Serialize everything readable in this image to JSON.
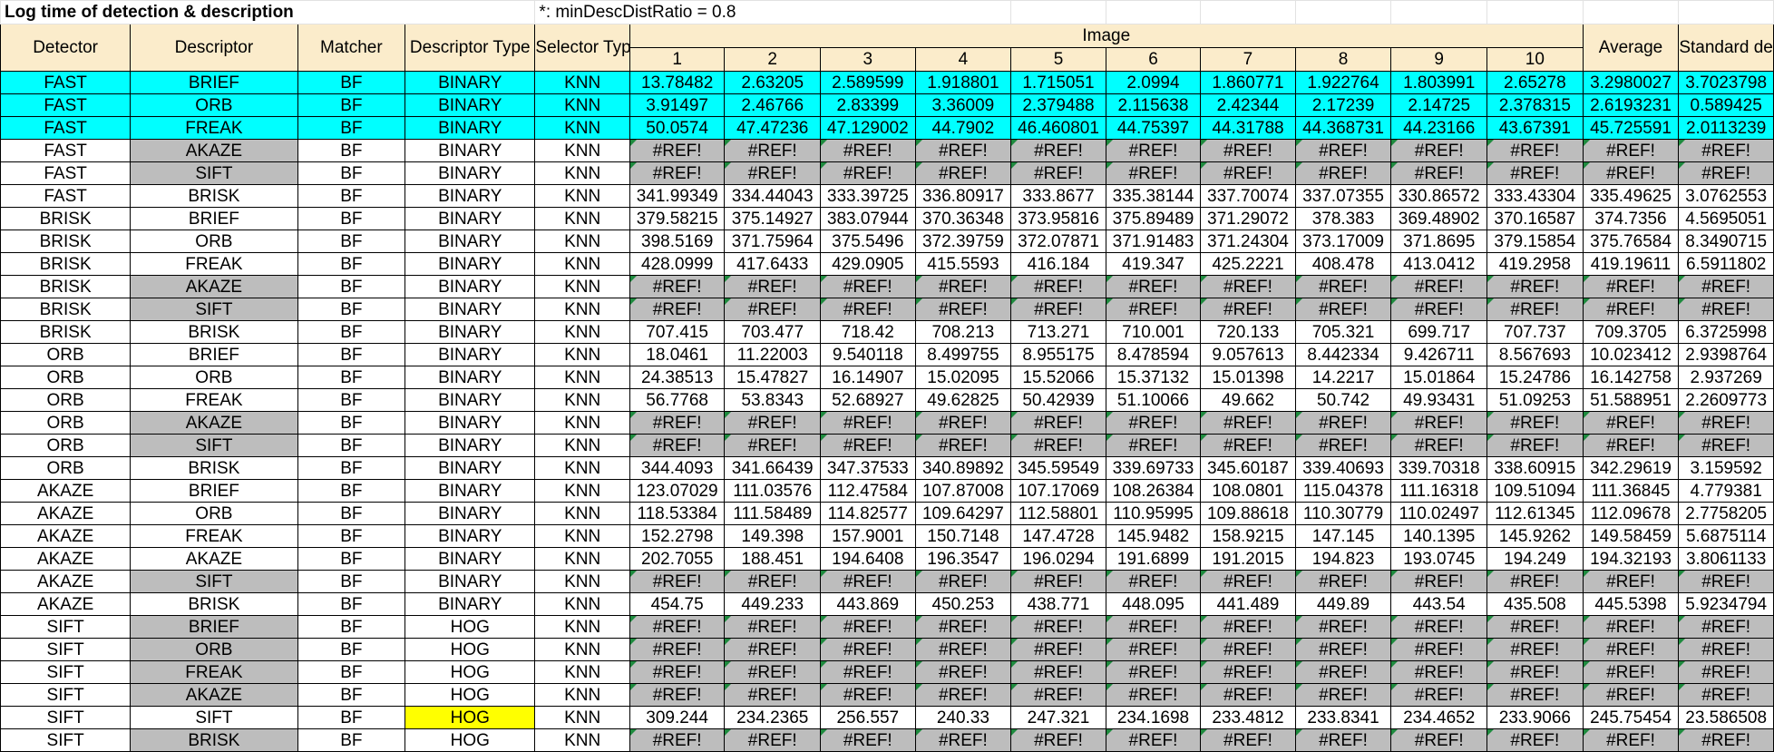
{
  "sheet": {
    "title": "Log time of detection & description",
    "note": "*: minDescDistRatio = 0.8",
    "headers": {
      "detector": "Detector",
      "descriptor": "Descriptor",
      "matcher": "Matcher",
      "descriptor_type": "Descriptor Type",
      "selector_type": "Selector Type *",
      "image": "Image",
      "image_numbers": [
        "1",
        "2",
        "3",
        "4",
        "5",
        "6",
        "7",
        "8",
        "9",
        "10"
      ],
      "average": "Average",
      "std": "Standard deviation"
    },
    "colors": {
      "header_fill": "#fbeccb",
      "highlight_cyan": "#00ffff",
      "error_gray": "#bdbdbd",
      "highlight_yellow": "#ffff00",
      "comment_marker": "#1e8a3e"
    },
    "rows": [
      {
        "detector": "FAST",
        "descriptor": "BRIEF",
        "matcher": "BF",
        "dtype": "BINARY",
        "selector": "KNN",
        "values": [
          "13.78482",
          "2.63205",
          "2.589599",
          "1.918801",
          "1.715051",
          "2.0994",
          "1.860771",
          "1.922764",
          "1.803991",
          "2.65278"
        ],
        "average": "3.2980027",
        "std": "3.7023798",
        "highlight": "cyan"
      },
      {
        "detector": "FAST",
        "descriptor": "ORB",
        "matcher": "BF",
        "dtype": "BINARY",
        "selector": "KNN",
        "values": [
          "3.91497",
          "2.46766",
          "2.83399",
          "3.36009",
          "2.379488",
          "2.115638",
          "2.42344",
          "2.17239",
          "2.14725",
          "2.378315"
        ],
        "average": "2.6193231",
        "std": "0.589425",
        "highlight": "cyan"
      },
      {
        "detector": "FAST",
        "descriptor": "FREAK",
        "matcher": "BF",
        "dtype": "BINARY",
        "selector": "KNN",
        "values": [
          "50.0574",
          "47.47236",
          "47.129002",
          "44.7902",
          "46.460801",
          "44.75397",
          "44.31788",
          "44.368731",
          "44.23166",
          "43.67391"
        ],
        "average": "45.725591",
        "std": "2.0113239",
        "highlight": "cyan"
      },
      {
        "detector": "FAST",
        "descriptor": "AKAZE",
        "matcher": "BF",
        "dtype": "BINARY",
        "selector": "KNN",
        "values": [
          "#REF!",
          "#REF!",
          "#REF!",
          "#REF!",
          "#REF!",
          "#REF!",
          "#REF!",
          "#REF!",
          "#REF!",
          "#REF!"
        ],
        "average": "#REF!",
        "std": "#REF!",
        "error": true
      },
      {
        "detector": "FAST",
        "descriptor": "SIFT",
        "matcher": "BF",
        "dtype": "BINARY",
        "selector": "KNN",
        "values": [
          "#REF!",
          "#REF!",
          "#REF!",
          "#REF!",
          "#REF!",
          "#REF!",
          "#REF!",
          "#REF!",
          "#REF!",
          "#REF!"
        ],
        "average": "#REF!",
        "std": "#REF!",
        "error": true
      },
      {
        "detector": "FAST",
        "descriptor": "BRISK",
        "matcher": "BF",
        "dtype": "BINARY",
        "selector": "KNN",
        "values": [
          "341.99349",
          "334.44043",
          "333.39725",
          "336.80917",
          "333.8677",
          "335.38144",
          "337.70074",
          "337.07355",
          "330.86572",
          "333.43304"
        ],
        "average": "335.49625",
        "std": "3.0762553"
      },
      {
        "detector": "BRISK",
        "descriptor": "BRIEF",
        "matcher": "BF",
        "dtype": "BINARY",
        "selector": "KNN",
        "values": [
          "379.58215",
          "375.14927",
          "383.07944",
          "370.36348",
          "373.95816",
          "375.89489",
          "371.29072",
          "378.383",
          "369.48902",
          "370.16587"
        ],
        "average": "374.7356",
        "std": "4.5695051"
      },
      {
        "detector": "BRISK",
        "descriptor": "ORB",
        "matcher": "BF",
        "dtype": "BINARY",
        "selector": "KNN",
        "values": [
          "398.5169",
          "371.75964",
          "375.5496",
          "372.39759",
          "372.07871",
          "371.91483",
          "371.24304",
          "373.17009",
          "371.8695",
          "379.15854"
        ],
        "average": "375.76584",
        "std": "8.3490715"
      },
      {
        "detector": "BRISK",
        "descriptor": "FREAK",
        "matcher": "BF",
        "dtype": "BINARY",
        "selector": "KNN",
        "values": [
          "428.0999",
          "417.6433",
          "429.0905",
          "415.5593",
          "416.184",
          "419.347",
          "425.2221",
          "408.478",
          "413.0412",
          "419.2958"
        ],
        "average": "419.19611",
        "std": "6.5911802"
      },
      {
        "detector": "BRISK",
        "descriptor": "AKAZE",
        "matcher": "BF",
        "dtype": "BINARY",
        "selector": "KNN",
        "values": [
          "#REF!",
          "#REF!",
          "#REF!",
          "#REF!",
          "#REF!",
          "#REF!",
          "#REF!",
          "#REF!",
          "#REF!",
          "#REF!"
        ],
        "average": "#REF!",
        "std": "#REF!",
        "error": true
      },
      {
        "detector": "BRISK",
        "descriptor": "SIFT",
        "matcher": "BF",
        "dtype": "BINARY",
        "selector": "KNN",
        "values": [
          "#REF!",
          "#REF!",
          "#REF!",
          "#REF!",
          "#REF!",
          "#REF!",
          "#REF!",
          "#REF!",
          "#REF!",
          "#REF!"
        ],
        "average": "#REF!",
        "std": "#REF!",
        "error": true
      },
      {
        "detector": "BRISK",
        "descriptor": "BRISK",
        "matcher": "BF",
        "dtype": "BINARY",
        "selector": "KNN",
        "values": [
          "707.415",
          "703.477",
          "718.42",
          "708.213",
          "713.271",
          "710.001",
          "720.133",
          "705.321",
          "699.717",
          "707.737"
        ],
        "average": "709.3705",
        "std": "6.3725998"
      },
      {
        "detector": "ORB",
        "descriptor": "BRIEF",
        "matcher": "BF",
        "dtype": "BINARY",
        "selector": "KNN",
        "values": [
          "18.0461",
          "11.22003",
          "9.540118",
          "8.499755",
          "8.955175",
          "8.478594",
          "9.057613",
          "8.442334",
          "9.426711",
          "8.567693"
        ],
        "average": "10.023412",
        "std": "2.9398764"
      },
      {
        "detector": "ORB",
        "descriptor": "ORB",
        "matcher": "BF",
        "dtype": "BINARY",
        "selector": "KNN",
        "values": [
          "24.38513",
          "15.47827",
          "16.14907",
          "15.02095",
          "15.52066",
          "15.37132",
          "15.01398",
          "14.2217",
          "15.01864",
          "15.24786"
        ],
        "average": "16.142758",
        "std": "2.937269"
      },
      {
        "detector": "ORB",
        "descriptor": "FREAK",
        "matcher": "BF",
        "dtype": "BINARY",
        "selector": "KNN",
        "values": [
          "56.7768",
          "53.8343",
          "52.68927",
          "49.62825",
          "50.42939",
          "51.10066",
          "49.662",
          "50.742",
          "49.93431",
          "51.09253"
        ],
        "average": "51.588951",
        "std": "2.2609773"
      },
      {
        "detector": "ORB",
        "descriptor": "AKAZE",
        "matcher": "BF",
        "dtype": "BINARY",
        "selector": "KNN",
        "values": [
          "#REF!",
          "#REF!",
          "#REF!",
          "#REF!",
          "#REF!",
          "#REF!",
          "#REF!",
          "#REF!",
          "#REF!",
          "#REF!"
        ],
        "average": "#REF!",
        "std": "#REF!",
        "error": true
      },
      {
        "detector": "ORB",
        "descriptor": "SIFT",
        "matcher": "BF",
        "dtype": "BINARY",
        "selector": "KNN",
        "values": [
          "#REF!",
          "#REF!",
          "#REF!",
          "#REF!",
          "#REF!",
          "#REF!",
          "#REF!",
          "#REF!",
          "#REF!",
          "#REF!"
        ],
        "average": "#REF!",
        "std": "#REF!",
        "error": true
      },
      {
        "detector": "ORB",
        "descriptor": "BRISK",
        "matcher": "BF",
        "dtype": "BINARY",
        "selector": "KNN",
        "values": [
          "344.4093",
          "341.66439",
          "347.37533",
          "340.89892",
          "345.59549",
          "339.69733",
          "345.60187",
          "339.40693",
          "339.70318",
          "338.60915"
        ],
        "average": "342.29619",
        "std": "3.159592"
      },
      {
        "detector": "AKAZE",
        "descriptor": "BRIEF",
        "matcher": "BF",
        "dtype": "BINARY",
        "selector": "KNN",
        "values": [
          "123.07029",
          "111.03576",
          "112.47584",
          "107.87008",
          "107.17069",
          "108.26384",
          "108.0801",
          "115.04378",
          "111.16318",
          "109.51094"
        ],
        "average": "111.36845",
        "std": "4.779381"
      },
      {
        "detector": "AKAZE",
        "descriptor": "ORB",
        "matcher": "BF",
        "dtype": "BINARY",
        "selector": "KNN",
        "values": [
          "118.53384",
          "111.58489",
          "114.82577",
          "109.64297",
          "112.58801",
          "110.95995",
          "109.88618",
          "110.30779",
          "110.02497",
          "112.61345"
        ],
        "average": "112.09678",
        "std": "2.7758205"
      },
      {
        "detector": "AKAZE",
        "descriptor": "FREAK",
        "matcher": "BF",
        "dtype": "BINARY",
        "selector": "KNN",
        "values": [
          "152.2798",
          "149.398",
          "157.9001",
          "150.7148",
          "147.4728",
          "145.9482",
          "158.9215",
          "147.145",
          "140.1395",
          "145.9262"
        ],
        "average": "149.58459",
        "std": "5.6875114"
      },
      {
        "detector": "AKAZE",
        "descriptor": "AKAZE",
        "matcher": "BF",
        "dtype": "BINARY",
        "selector": "KNN",
        "values": [
          "202.7055",
          "188.451",
          "194.6408",
          "196.3547",
          "196.0294",
          "191.6899",
          "191.2015",
          "194.823",
          "193.0745",
          "194.249"
        ],
        "average": "194.32193",
        "std": "3.8061133"
      },
      {
        "detector": "AKAZE",
        "descriptor": "SIFT",
        "matcher": "BF",
        "dtype": "BINARY",
        "selector": "KNN",
        "values": [
          "#REF!",
          "#REF!",
          "#REF!",
          "#REF!",
          "#REF!",
          "#REF!",
          "#REF!",
          "#REF!",
          "#REF!",
          "#REF!"
        ],
        "average": "#REF!",
        "std": "#REF!",
        "error": true
      },
      {
        "detector": "AKAZE",
        "descriptor": "BRISK",
        "matcher": "BF",
        "dtype": "BINARY",
        "selector": "KNN",
        "values": [
          "454.75",
          "449.233",
          "443.869",
          "450.253",
          "438.771",
          "448.095",
          "441.489",
          "449.89",
          "443.54",
          "435.508"
        ],
        "average": "445.5398",
        "std": "5.9234794"
      },
      {
        "detector": "SIFT",
        "descriptor": "BRIEF",
        "matcher": "BF",
        "dtype": "HOG",
        "selector": "KNN",
        "values": [
          "#REF!",
          "#REF!",
          "#REF!",
          "#REF!",
          "#REF!",
          "#REF!",
          "#REF!",
          "#REF!",
          "#REF!",
          "#REF!"
        ],
        "average": "#REF!",
        "std": "#REF!",
        "error": true
      },
      {
        "detector": "SIFT",
        "descriptor": "ORB",
        "matcher": "BF",
        "dtype": "HOG",
        "selector": "KNN",
        "values": [
          "#REF!",
          "#REF!",
          "#REF!",
          "#REF!",
          "#REF!",
          "#REF!",
          "#REF!",
          "#REF!",
          "#REF!",
          "#REF!"
        ],
        "average": "#REF!",
        "std": "#REF!",
        "error": true
      },
      {
        "detector": "SIFT",
        "descriptor": "FREAK",
        "matcher": "BF",
        "dtype": "HOG",
        "selector": "KNN",
        "values": [
          "#REF!",
          "#REF!",
          "#REF!",
          "#REF!",
          "#REF!",
          "#REF!",
          "#REF!",
          "#REF!",
          "#REF!",
          "#REF!"
        ],
        "average": "#REF!",
        "std": "#REF!",
        "error": true
      },
      {
        "detector": "SIFT",
        "descriptor": "AKAZE",
        "matcher": "BF",
        "dtype": "HOG",
        "selector": "KNN",
        "values": [
          "#REF!",
          "#REF!",
          "#REF!",
          "#REF!",
          "#REF!",
          "#REF!",
          "#REF!",
          "#REF!",
          "#REF!",
          "#REF!"
        ],
        "average": "#REF!",
        "std": "#REF!",
        "error": true
      },
      {
        "detector": "SIFT",
        "descriptor": "SIFT",
        "matcher": "BF",
        "dtype": "HOG",
        "selector": "KNN",
        "values": [
          "309.244",
          "234.2365",
          "256.557",
          "240.33",
          "247.321",
          "234.1698",
          "233.4812",
          "233.8341",
          "234.4652",
          "233.9066"
        ],
        "average": "245.75454",
        "std": "23.586508",
        "dtype_highlight": "yellow"
      },
      {
        "detector": "SIFT",
        "descriptor": "BRISK",
        "matcher": "BF",
        "dtype": "HOG",
        "selector": "KNN",
        "values": [
          "#REF!",
          "#REF!",
          "#REF!",
          "#REF!",
          "#REF!",
          "#REF!",
          "#REF!",
          "#REF!",
          "#REF!",
          "#REF!"
        ],
        "average": "#REF!",
        "std": "#REF!",
        "error": true
      }
    ]
  }
}
